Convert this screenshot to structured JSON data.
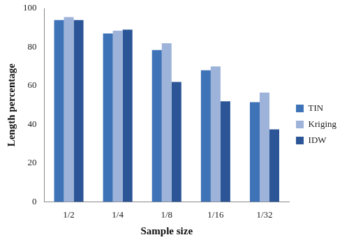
{
  "chart_data": {
    "type": "bar",
    "x_label": "Sample size",
    "y_label": "Length percentage",
    "categories": [
      "1/2",
      "1/4",
      "1/8",
      "1/16",
      "1/32"
    ],
    "series": [
      {
        "name": "TIN",
        "color": "#3f73b8",
        "values": [
          94,
          87,
          78.5,
          68,
          51.5
        ]
      },
      {
        "name": "Kriging",
        "color": "#9db3d9",
        "values": [
          95.5,
          88.5,
          82,
          70,
          56.5
        ]
      },
      {
        "name": "IDW",
        "color": "#2c5597",
        "values": [
          94,
          89,
          62,
          52,
          37.5
        ]
      }
    ],
    "ylim": [
      0,
      100
    ],
    "yticks": [
      0,
      20,
      40,
      60,
      80,
      100
    ],
    "grid": false,
    "legend": "right"
  }
}
